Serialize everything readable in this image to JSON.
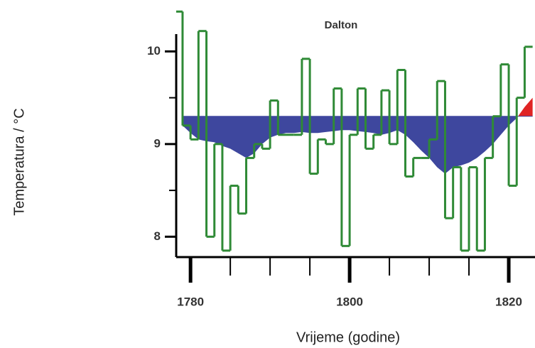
{
  "chart_data": {
    "type": "step",
    "title": "Dalton",
    "x_label": "Vrijeme (godine)",
    "y_label": "Temperatura / °C",
    "x": [
      1778,
      1779,
      1780,
      1781,
      1782,
      1783,
      1784,
      1785,
      1786,
      1787,
      1788,
      1789,
      1790,
      1791,
      1792,
      1793,
      1794,
      1795,
      1796,
      1797,
      1798,
      1799,
      1800,
      1801,
      1802,
      1803,
      1804,
      1805,
      1806,
      1807,
      1808,
      1809,
      1810,
      1811,
      1812,
      1813,
      1814,
      1815,
      1816,
      1817,
      1818,
      1819,
      1820,
      1821,
      1822
    ],
    "values": [
      10.43,
      9.2,
      9.05,
      10.22,
      8.0,
      9.0,
      7.85,
      8.55,
      8.25,
      8.85,
      9.0,
      8.95,
      9.47,
      9.1,
      9.1,
      9.1,
      9.92,
      8.68,
      9.05,
      9.0,
      9.6,
      7.9,
      9.1,
      9.6,
      8.95,
      9.1,
      9.58,
      9.0,
      9.8,
      8.65,
      8.85,
      8.85,
      9.05,
      9.68,
      8.2,
      8.75,
      7.85,
      8.75,
      7.85,
      8.85,
      9.3,
      9.86,
      8.55,
      9.5,
      10.05
    ],
    "color": "#2f8a36",
    "smoothed_x": [
      1779,
      1780,
      1781,
      1782,
      1783,
      1784,
      1785,
      1786,
      1787,
      1788,
      1789,
      1790,
      1791,
      1792,
      1793,
      1794,
      1795,
      1796,
      1797,
      1798,
      1799,
      1800,
      1801,
      1802,
      1803,
      1804,
      1805,
      1806,
      1807,
      1808,
      1809,
      1810,
      1811,
      1812,
      1813,
      1814,
      1815,
      1816,
      1817,
      1818,
      1819,
      1820,
      1821,
      1822,
      1823
    ],
    "smoothed": [
      9.2,
      9.12,
      9.05,
      9.03,
      9.02,
      8.98,
      8.95,
      8.9,
      8.85,
      8.9,
      9.0,
      9.07,
      9.1,
      9.12,
      9.12,
      9.13,
      9.12,
      9.12,
      9.13,
      9.14,
      9.15,
      9.15,
      9.14,
      9.13,
      9.12,
      9.1,
      9.12,
      9.15,
      9.1,
      9.02,
      8.93,
      8.85,
      8.75,
      8.68,
      8.75,
      8.77,
      8.8,
      8.85,
      8.92,
      9.0,
      9.1,
      9.2,
      9.28,
      9.4,
      9.5
    ],
    "reference": 9.3,
    "below_color": "#3e479e",
    "above_color": "#e02424",
    "xlim": [
      1778.2,
      1823.3
    ],
    "ylim": [
      7.78,
      10.44
    ],
    "xticks": [
      1780,
      1800,
      1820
    ],
    "xminor": [
      1785,
      1790,
      1795,
      1805,
      1810,
      1815
    ],
    "yticks": [
      8,
      9,
      10
    ],
    "yminor": [
      8.5,
      9.5
    ]
  }
}
